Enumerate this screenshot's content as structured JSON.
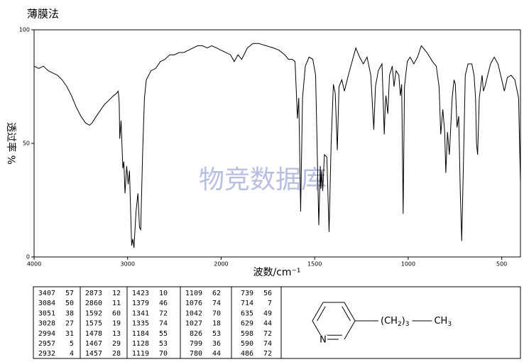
{
  "chart_data": {
    "type": "line",
    "title": "薄膜法",
    "ylabel": "透过率 %",
    "xlabel": "波数/cm⁻¹",
    "watermark": "物竞数据库",
    "xlim": [
      4000,
      400
    ],
    "x_scale_break": {
      "at": 2000,
      "factor": 2
    },
    "xticks": [
      4000,
      3000,
      2000,
      1500,
      1000,
      500
    ],
    "ylim": [
      0,
      100
    ],
    "yticks": [
      0,
      50,
      100
    ],
    "x": [
      4000,
      3950,
      3900,
      3850,
      3800,
      3750,
      3700,
      3650,
      3600,
      3550,
      3500,
      3450,
      3407,
      3380,
      3350,
      3300,
      3250,
      3200,
      3150,
      3120,
      3100,
      3090,
      3084,
      3070,
      3051,
      3040,
      3028,
      3010,
      2994,
      2980,
      2957,
      2945,
      2932,
      2910,
      2890,
      2873,
      2860,
      2840,
      2820,
      2800,
      2750,
      2700,
      2650,
      2600,
      2550,
      2500,
      2450,
      2400,
      2350,
      2300,
      2250,
      2200,
      2150,
      2100,
      2050,
      2000,
      1950,
      1930,
      1910,
      1890,
      1860,
      1830,
      1800,
      1760,
      1720,
      1690,
      1660,
      1640,
      1620,
      1605,
      1592,
      1585,
      1575,
      1565,
      1550,
      1530,
      1510,
      1495,
      1478,
      1470,
      1467,
      1462,
      1457,
      1448,
      1435,
      1423,
      1412,
      1400,
      1390,
      1379,
      1370,
      1355,
      1341,
      1335,
      1320,
      1300,
      1280,
      1260,
      1240,
      1220,
      1200,
      1190,
      1184,
      1175,
      1160,
      1140,
      1128,
      1122,
      1119,
      1109,
      1100,
      1085,
      1076,
      1065,
      1050,
      1042,
      1035,
      1027,
      1020,
      1005,
      990,
      970,
      950,
      930,
      900,
      870,
      850,
      835,
      826,
      815,
      805,
      799,
      790,
      780,
      765,
      755,
      748,
      739,
      730,
      722,
      714,
      705,
      695,
      680,
      660,
      648,
      640,
      635,
      629,
      620,
      605,
      598,
      590,
      575,
      560,
      540,
      520,
      500,
      486,
      470,
      450,
      430,
      410,
      400
    ],
    "series": [
      {
        "color": "#000000",
        "values": [
          84,
          83,
          84,
          82,
          81,
          80,
          78,
          75,
          71,
          66,
          62,
          59,
          58,
          59,
          61,
          64,
          67,
          69,
          71,
          72,
          73,
          68,
          52,
          60,
          39,
          42,
          28,
          40,
          32,
          38,
          5,
          8,
          4,
          20,
          28,
          13,
          12,
          45,
          70,
          78,
          82,
          83,
          86,
          87,
          89,
          89,
          90,
          90,
          91,
          92,
          93,
          93,
          92,
          93,
          92,
          91,
          89,
          86,
          89,
          87,
          92,
          94,
          94,
          93,
          92,
          91,
          89,
          87,
          87,
          86,
          61,
          70,
          20,
          70,
          84,
          88,
          87,
          80,
          14,
          40,
          30,
          38,
          29,
          45,
          44,
          11,
          50,
          76,
          72,
          47,
          75,
          78,
          73,
          75,
          80,
          86,
          92,
          88,
          85,
          88,
          80,
          65,
          56,
          75,
          82,
          85,
          54,
          68,
          71,
          63,
          80,
          84,
          75,
          82,
          80,
          71,
          76,
          19,
          75,
          86,
          88,
          85,
          88,
          93,
          90,
          86,
          84,
          75,
          54,
          65,
          55,
          37,
          55,
          45,
          70,
          78,
          76,
          57,
          62,
          30,
          7,
          40,
          80,
          85,
          85,
          80,
          70,
          50,
          45,
          70,
          80,
          73,
          75,
          80,
          85,
          88,
          85,
          78,
          73,
          79,
          80,
          78,
          70,
          33
        ]
      }
    ],
    "peak_table": [
      [
        [
          3407,
          57
        ],
        [
          3084,
          50
        ],
        [
          3051,
          38
        ],
        [
          3028,
          27
        ],
        [
          2994,
          31
        ],
        [
          2957,
          5
        ],
        [
          2932,
          4
        ]
      ],
      [
        [
          2873,
          12
        ],
        [
          2860,
          11
        ],
        [
          1592,
          60
        ],
        [
          1575,
          19
        ],
        [
          1478,
          13
        ],
        [
          1467,
          29
        ],
        [
          1457,
          28
        ]
      ],
      [
        [
          1423,
          10
        ],
        [
          1379,
          46
        ],
        [
          1341,
          72
        ],
        [
          1335,
          74
        ],
        [
          1184,
          55
        ],
        [
          1128,
          53
        ],
        [
          1119,
          70
        ]
      ],
      [
        [
          1109,
          62
        ],
        [
          1076,
          74
        ],
        [
          1042,
          70
        ],
        [
          1027,
          18
        ],
        [
          826,
          53
        ],
        [
          799,
          36
        ],
        [
          780,
          44
        ]
      ],
      [
        [
          739,
          56
        ],
        [
          714,
          7
        ],
        [
          635,
          49
        ],
        [
          629,
          44
        ],
        [
          598,
          72
        ],
        [
          590,
          74
        ],
        [
          486,
          72
        ]
      ]
    ],
    "structure": {
      "ring_atom": "N",
      "substituent": [
        {
          "text": "(CH",
          "sub": false
        },
        {
          "text": "2",
          "sub": true
        },
        {
          "text": ")",
          "sub": false
        },
        {
          "text": "3",
          "sub": true
        }
      ],
      "end_group": [
        {
          "text": "CH",
          "sub": false
        },
        {
          "text": "3",
          "sub": true
        }
      ]
    }
  }
}
